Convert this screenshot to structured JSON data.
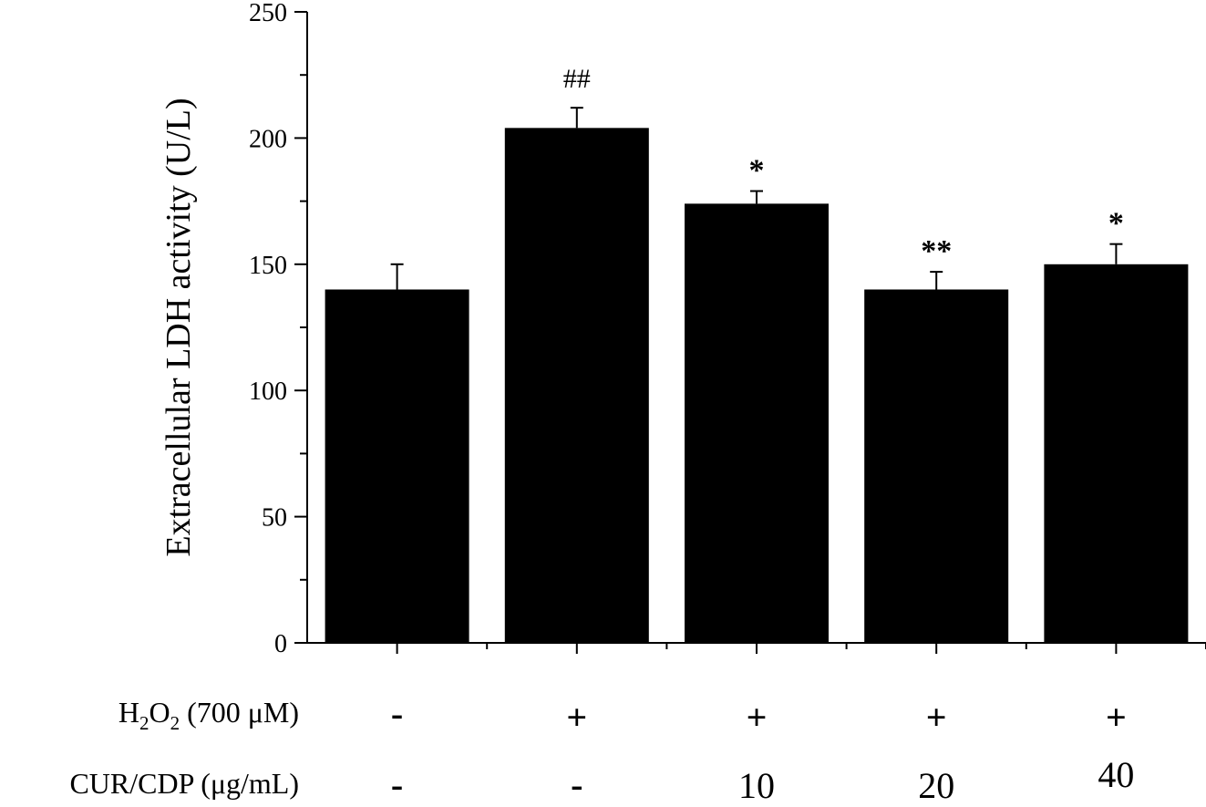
{
  "chart_data": {
    "type": "bar",
    "title": "",
    "ylabel": "Extracellular LDH  activity (U/L)",
    "xlabel": "",
    "ylim": [
      0,
      250
    ],
    "yticks": [
      0,
      50,
      100,
      150,
      200,
      250
    ],
    "grid": false,
    "bar_color": "#000000",
    "bars": [
      {
        "value": 140,
        "error": 10,
        "significance": ""
      },
      {
        "value": 204,
        "error": 8,
        "significance": "##"
      },
      {
        "value": 174,
        "error": 5,
        "significance": "*"
      },
      {
        "value": 140,
        "error": 7,
        "significance": "**"
      },
      {
        "value": 150,
        "error": 8,
        "significance": "*"
      }
    ],
    "conditions": [
      {
        "label_parts": [
          "H",
          "2",
          "O",
          "2",
          " (700 μM)"
        ],
        "values": [
          "-",
          "+",
          "+",
          "+",
          "+"
        ]
      },
      {
        "label_parts": [
          "CUR/CDP (μg/mL)"
        ],
        "values": [
          "-",
          "-",
          "10",
          "20",
          "40"
        ]
      }
    ]
  }
}
